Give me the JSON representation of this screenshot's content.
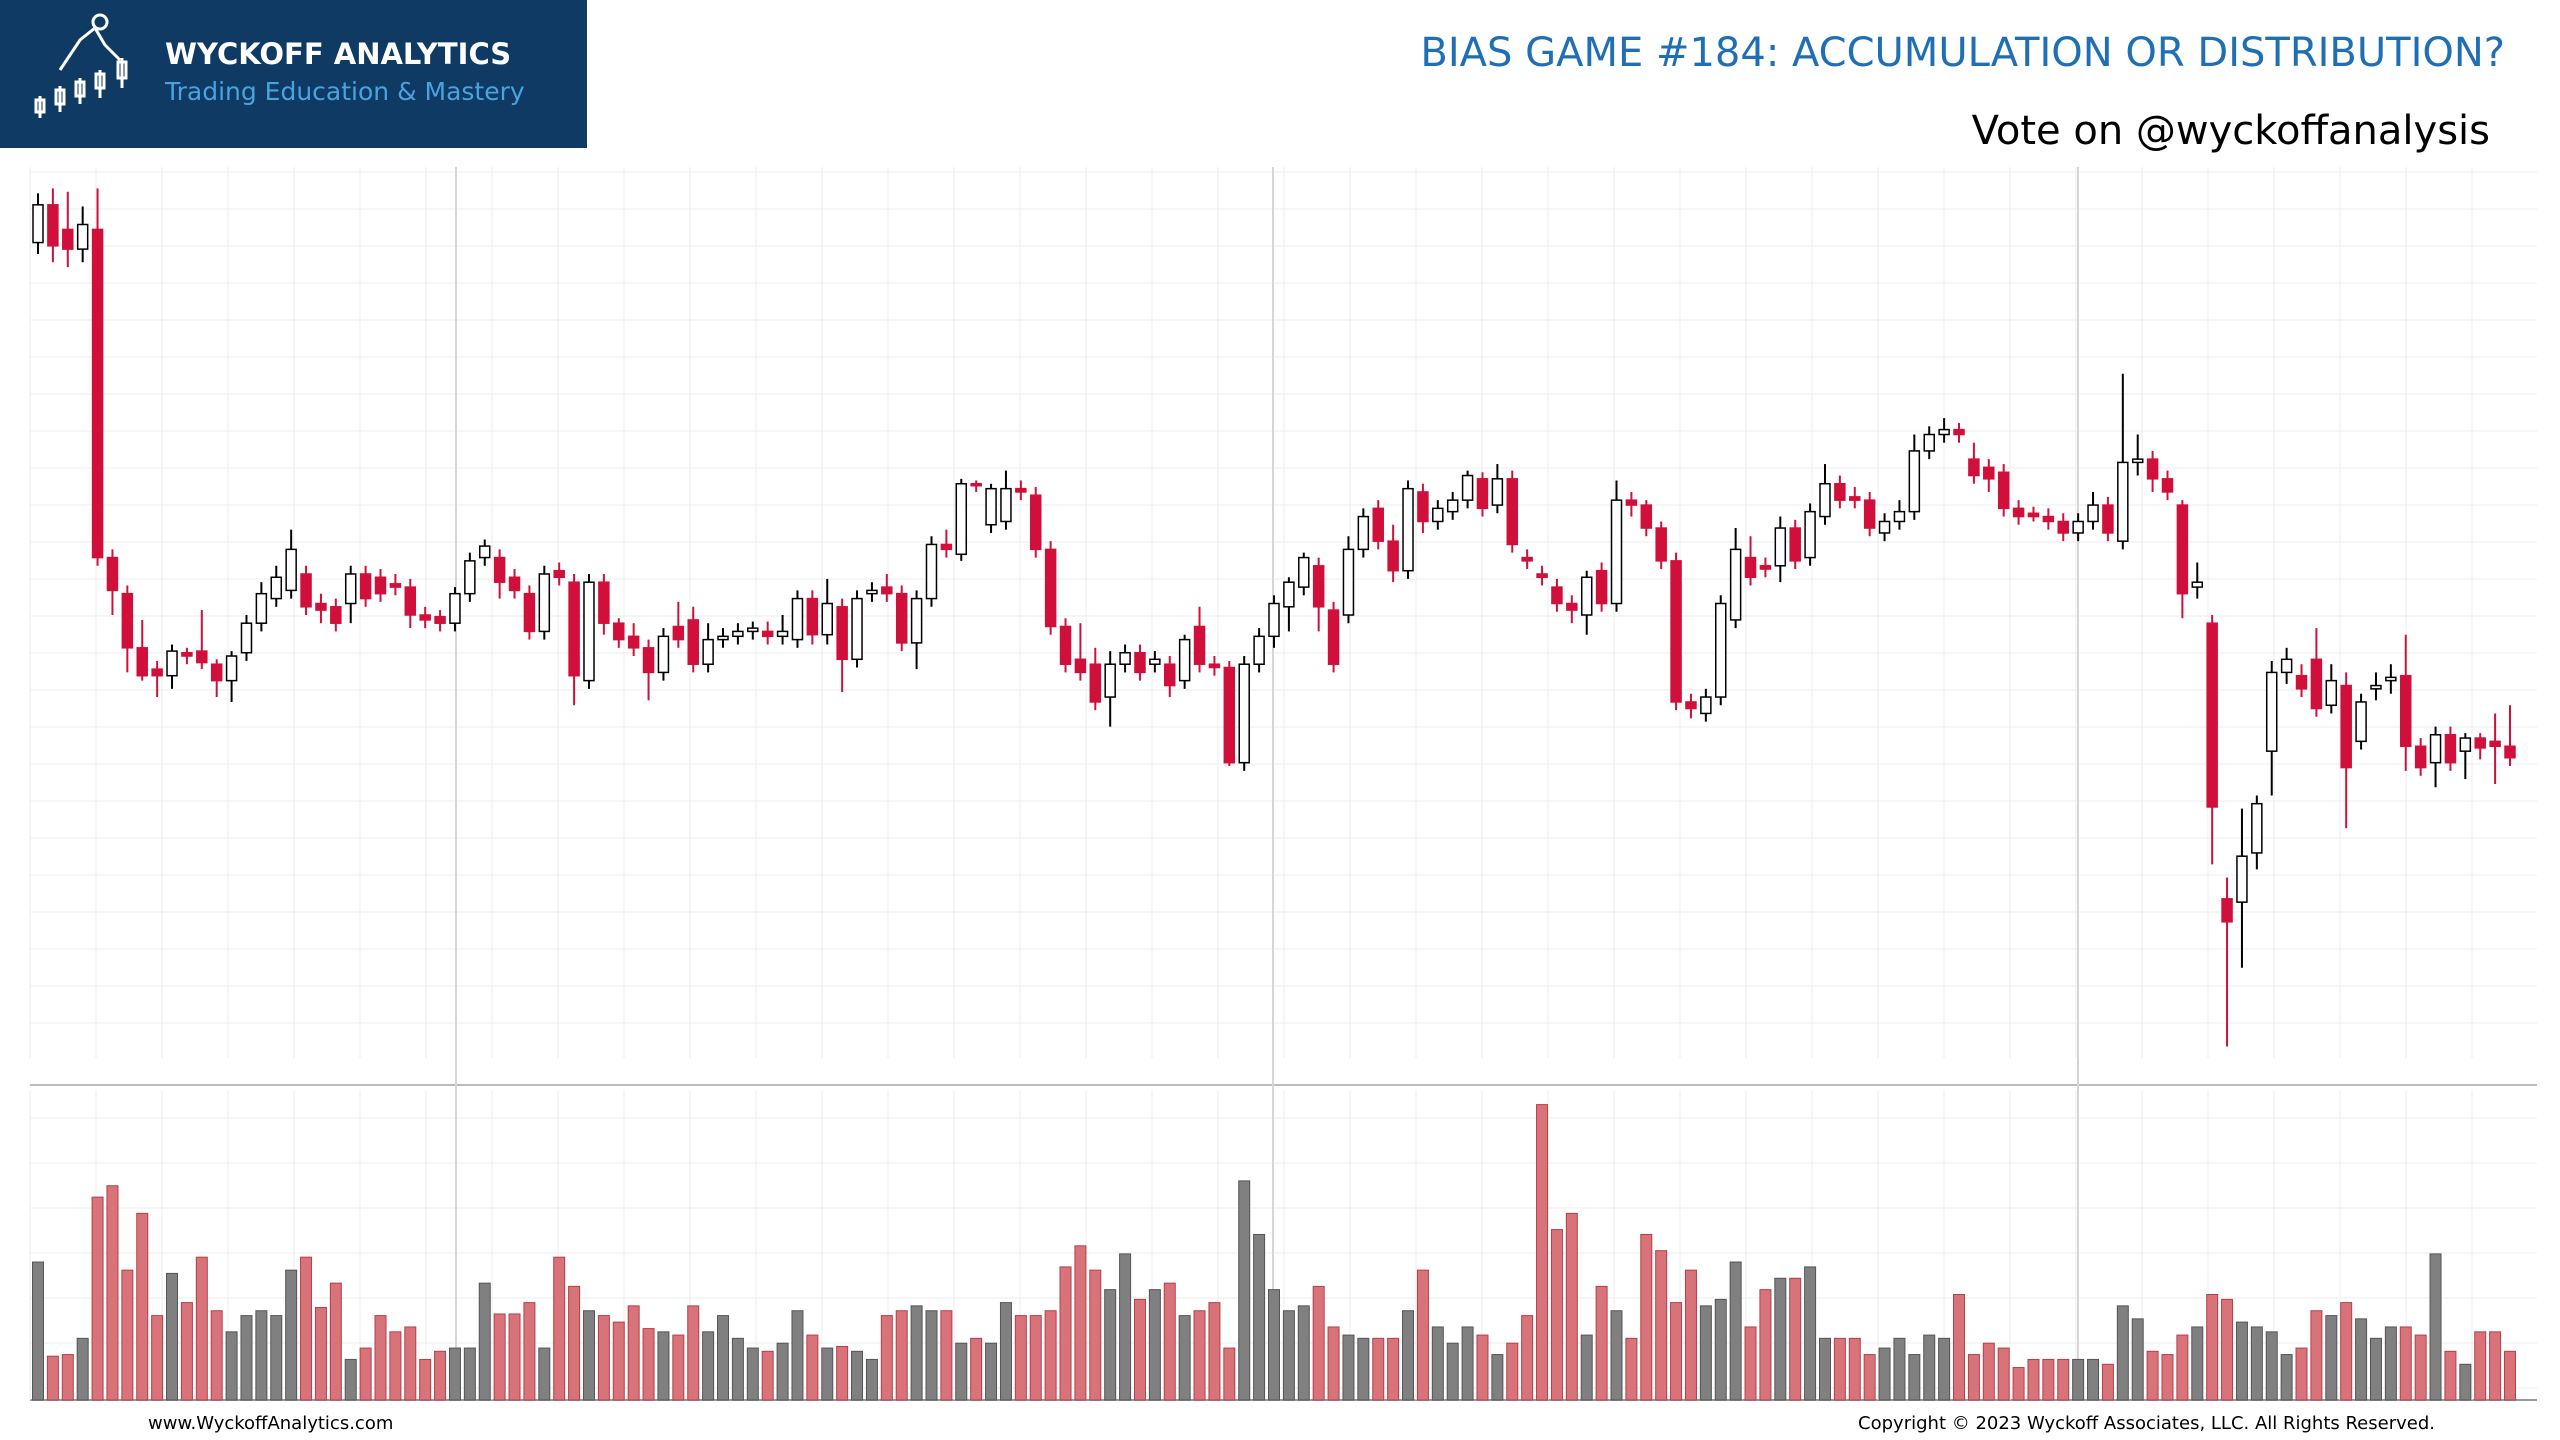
{
  "header": {
    "brand": "WYCKOFF ANALYTICS",
    "tagline": "Trading Education & Mastery"
  },
  "footer": {
    "website": "www.WyckoffAnalytics.com",
    "copyright": "Copyright © 2023 Wyckoff Associates, LLC. All Rights Reserved."
  },
  "chart_data": {
    "type": "candlestick",
    "title": "BIAS GAME #184: ACCUMULATION OR DISTRIBUTION?",
    "subtitle": "Vote on @wyckoffanalysis",
    "ylim": [
      0,
      540
    ],
    "volume_ylim": [
      0,
      191
    ],
    "grid": true,
    "up_color": "#ffffff",
    "down_color": "#d0103a",
    "volume_up_color": "#808080",
    "volume_down_color": "#d9737a",
    "open": [
      497,
      520,
      505,
      493,
      505,
      305,
      283,
      250,
      237,
      233,
      247,
      248,
      240,
      230,
      247,
      265,
      280,
      285,
      295,
      277,
      275,
      277,
      295,
      293,
      289,
      287,
      270,
      269,
      265,
      283,
      305,
      305,
      293,
      283,
      260,
      297,
      290,
      230,
      290,
      265,
      257,
      250,
      235,
      263,
      267,
      240,
      255,
      257,
      260,
      260,
      257,
      255,
      280,
      258,
      275,
      243,
      283,
      287,
      283,
      253,
      280,
      313,
      307,
      350,
      325,
      327,
      347,
      343,
      310,
      263,
      243,
      240,
      220,
      240,
      247,
      240,
      240,
      230,
      263,
      240,
      238,
      180,
      240,
      257,
      275,
      287,
      300,
      273,
      270,
      310,
      335,
      315,
      297,
      345,
      327,
      333,
      340,
      353,
      337,
      353,
      305,
      295,
      287,
      277,
      270,
      297,
      277,
      340,
      337,
      323,
      303,
      217,
      210,
      220,
      267,
      305,
      300,
      300,
      323,
      305,
      330,
      350,
      342,
      340,
      320,
      327,
      333,
      370,
      380,
      383,
      365,
      360,
      357,
      335,
      332,
      330,
      327,
      320,
      327,
      337,
      315,
      363,
      365,
      353,
      337,
      287,
      265,
      97,
      95,
      125,
      187,
      235,
      233,
      243,
      215,
      227,
      193,
      225,
      230,
      233,
      190,
      180,
      197,
      187,
      195,
      193,
      190
    ],
    "high": [
      527,
      530,
      528,
      519,
      530,
      310,
      288,
      267,
      242,
      252,
      250,
      273,
      243,
      248,
      270,
      290,
      300,
      322,
      300,
      283,
      280,
      300,
      300,
      298,
      295,
      292,
      275,
      273,
      287,
      308,
      316,
      310,
      298,
      288,
      300,
      302,
      295,
      295,
      295,
      268,
      265,
      255,
      262,
      278,
      275,
      265,
      262,
      265,
      266,
      266,
      270,
      285,
      285,
      292,
      280,
      285,
      290,
      295,
      288,
      285,
      318,
      322,
      353,
      352,
      350,
      358,
      352,
      348,
      315,
      268,
      265,
      250,
      248,
      252,
      252,
      248,
      245,
      258,
      275,
      245,
      242,
      245,
      262,
      282,
      293,
      308,
      305,
      278,
      318,
      335,
      340,
      325,
      352,
      350,
      340,
      345,
      358,
      357,
      362,
      358,
      310,
      300,
      292,
      282,
      297,
      302,
      352,
      345,
      340,
      327,
      308,
      222,
      225,
      282,
      323,
      318,
      305,
      330,
      328,
      338,
      362,
      355,
      348,
      345,
      332,
      340,
      380,
      385,
      390,
      387,
      375,
      365,
      362,
      340,
      336,
      335,
      332,
      332,
      345,
      342,
      417,
      380,
      370,
      358,
      340,
      302,
      270,
      110,
      152,
      160,
      242,
      250,
      240,
      262,
      240,
      235,
      222,
      235,
      240,
      258,
      195,
      202,
      202,
      198,
      198,
      210,
      215
    ],
    "low": [
      490,
      485,
      482,
      485,
      300,
      270,
      235,
      230,
      220,
      225,
      240,
      237,
      220,
      217,
      242,
      260,
      275,
      280,
      270,
      265,
      260,
      265,
      275,
      278,
      282,
      262,
      262,
      260,
      260,
      278,
      300,
      280,
      280,
      255,
      255,
      288,
      215,
      225,
      258,
      250,
      245,
      218,
      230,
      250,
      235,
      235,
      250,
      252,
      255,
      252,
      252,
      250,
      252,
      252,
      223,
      238,
      278,
      278,
      248,
      237,
      275,
      305,
      303,
      345,
      320,
      322,
      340,
      305,
      258,
      235,
      230,
      212,
      202,
      235,
      230,
      235,
      220,
      225,
      235,
      233,
      178,
      175,
      235,
      250,
      260,
      282,
      260,
      235,
      265,
      305,
      310,
      290,
      292,
      320,
      322,
      328,
      335,
      330,
      332,
      308,
      298,
      288,
      272,
      265,
      258,
      272,
      272,
      330,
      318,
      298,
      212,
      207,
      205,
      215,
      262,
      288,
      293,
      290,
      298,
      300,
      325,
      335,
      335,
      318,
      315,
      322,
      328,
      365,
      375,
      375,
      350,
      345,
      330,
      325,
      327,
      322,
      315,
      315,
      322,
      315,
      310,
      355,
      345,
      340,
      268,
      280,
      118,
      7,
      55,
      115,
      160,
      228,
      220,
      208,
      210,
      140,
      188,
      218,
      222,
      175,
      172,
      165,
      175,
      170,
      182,
      167,
      178
    ],
    "close": [
      520,
      495,
      493,
      508,
      305,
      285,
      250,
      233,
      233,
      248,
      245,
      241,
      230,
      245,
      265,
      283,
      293,
      310,
      275,
      273,
      265,
      295,
      280,
      283,
      287,
      270,
      267,
      265,
      283,
      303,
      312,
      290,
      285,
      260,
      295,
      293,
      233,
      290,
      265,
      255,
      250,
      235,
      257,
      255,
      240,
      255,
      257,
      260,
      262,
      257,
      260,
      280,
      258,
      277,
      243,
      280,
      285,
      283,
      253,
      280,
      313,
      310,
      350,
      349,
      347,
      347,
      345,
      310,
      263,
      240,
      235,
      217,
      240,
      247,
      235,
      243,
      227,
      255,
      240,
      238,
      180,
      240,
      257,
      277,
      290,
      305,
      275,
      240,
      310,
      330,
      315,
      297,
      347,
      327,
      335,
      340,
      355,
      335,
      353,
      313,
      303,
      293,
      277,
      273,
      293,
      277,
      340,
      337,
      323,
      303,
      217,
      213,
      220,
      277,
      310,
      293,
      298,
      323,
      303,
      333,
      350,
      340,
      340,
      323,
      327,
      333,
      370,
      380,
      383,
      380,
      355,
      353,
      335,
      330,
      330,
      327,
      320,
      327,
      337,
      320,
      363,
      365,
      353,
      345,
      283,
      290,
      153,
      83,
      123,
      155,
      235,
      243,
      225,
      213,
      230,
      177,
      217,
      227,
      232,
      190,
      177,
      197,
      180,
      195,
      189,
      190,
      183
    ],
    "volume": [
      85,
      27,
      28,
      38,
      125,
      132,
      80,
      115,
      52,
      78,
      60,
      88,
      55,
      42,
      52,
      55,
      52,
      80,
      88,
      57,
      72,
      25,
      32,
      52,
      42,
      45,
      25,
      30,
      32,
      32,
      72,
      53,
      53,
      60,
      32,
      88,
      70,
      55,
      52,
      48,
      58,
      44,
      42,
      40,
      58,
      42,
      52,
      38,
      32,
      30,
      35,
      55,
      40,
      32,
      33,
      30,
      25,
      52,
      55,
      58,
      55,
      55,
      35,
      38,
      35,
      60,
      52,
      52,
      55,
      82,
      95,
      80,
      68,
      90,
      62,
      68,
      72,
      52,
      55,
      60,
      32,
      135,
      102,
      68,
      55,
      58,
      70,
      45,
      40,
      38,
      38,
      38,
      55,
      80,
      45,
      35,
      45,
      40,
      28,
      35,
      52,
      182,
      105,
      115,
      40,
      70,
      55,
      38,
      102,
      92,
      60,
      80,
      58,
      62,
      85,
      45,
      68,
      75,
      75,
      82,
      38,
      38,
      38,
      28,
      32,
      38,
      28,
      40,
      38,
      65,
      28,
      35,
      32,
      20,
      25,
      25,
      25,
      25,
      25,
      22,
      58,
      50,
      30,
      28,
      40,
      45,
      65,
      62,
      48,
      45,
      42,
      28,
      32,
      55,
      52,
      60,
      50,
      38,
      45,
      45,
      40,
      90,
      30,
      22,
      42,
      42,
      30
    ]
  }
}
